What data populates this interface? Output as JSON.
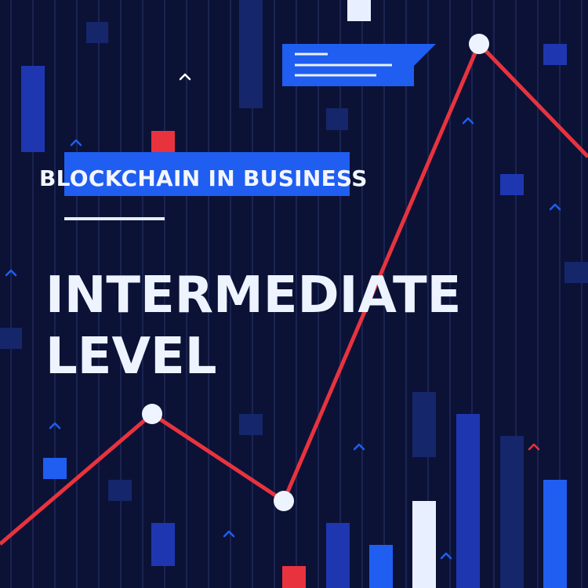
{
  "title": {
    "subtitle": "BLOCKCHAIN IN BUSINESS",
    "line1": "INTERMEDIATE",
    "line2": "LEVEL"
  },
  "colors": {
    "background": "#0b1236",
    "stripe": "#1a2452",
    "accent_blue": "#1f5ef0",
    "deep_blue": "#1e37b0",
    "navy_block": "#16266b",
    "trend_red": "#e8333f",
    "white": "#eef4ff"
  },
  "icons": [
    "chat-bubble-icon",
    "chevron-up-icon",
    "trend-line-icon",
    "data-point-icon"
  ]
}
